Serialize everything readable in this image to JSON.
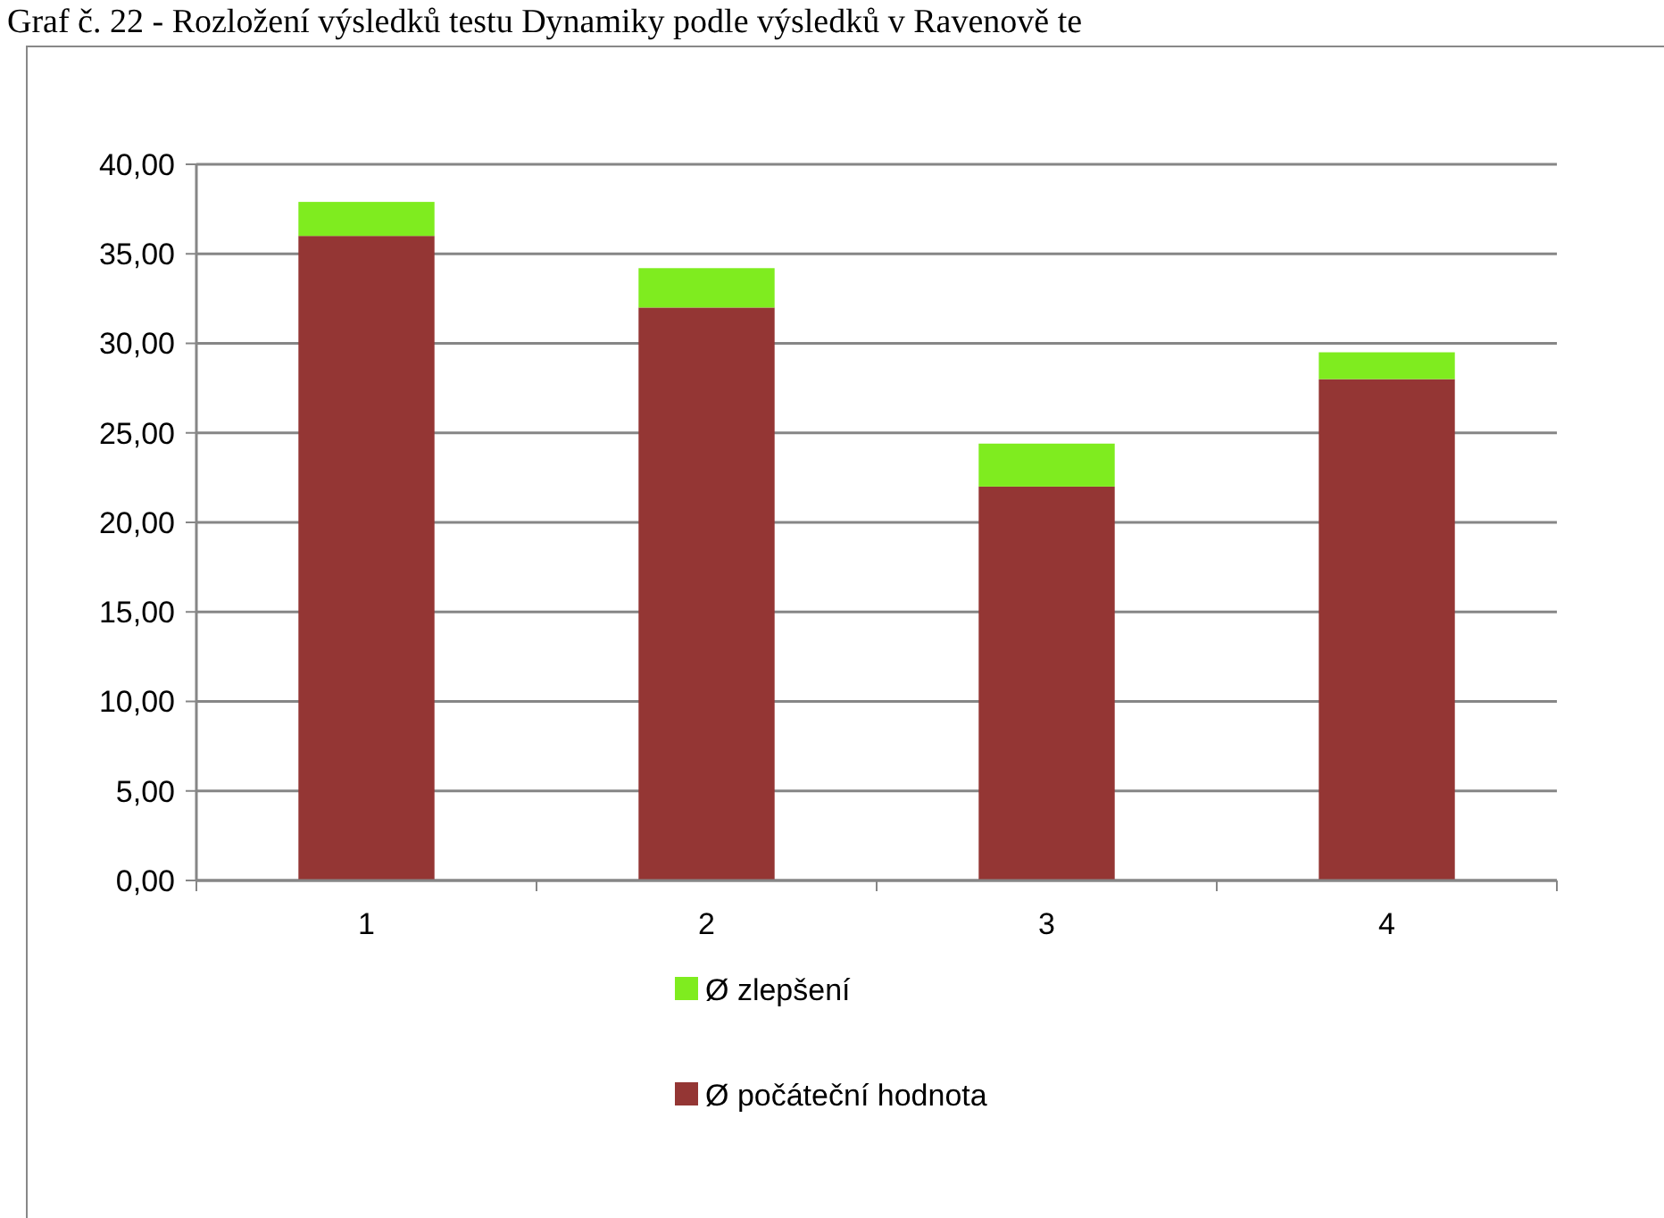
{
  "chart_data": {
    "type": "bar",
    "title": "Graf č. 22 - Rozložení výsledků testu Dynamiky podle výsledků v Ravenově te",
    "categories": [
      "1",
      "2",
      "3",
      "4"
    ],
    "stacked": true,
    "series": [
      {
        "name": "Ø počáteční hodnota",
        "color": "#943634",
        "values": [
          36,
          32,
          22,
          28
        ]
      },
      {
        "name": "Ø zlepšení",
        "color": "#7fec1f",
        "values": [
          1.9,
          2.2,
          2.4,
          1.5
        ]
      }
    ],
    "ylim": [
      0,
      40
    ],
    "yticks": [
      {
        "value": 0,
        "label": "0,00"
      },
      {
        "value": 5,
        "label": "5,00"
      },
      {
        "value": 10,
        "label": "10,00"
      },
      {
        "value": 15,
        "label": "15,00"
      },
      {
        "value": 20,
        "label": "20,00"
      },
      {
        "value": 25,
        "label": "25,00"
      },
      {
        "value": 30,
        "label": "30,00"
      },
      {
        "value": 35,
        "label": "35,00"
      },
      {
        "value": 40,
        "label": "40,00"
      }
    ],
    "grid": "y",
    "legend": "bottom"
  }
}
